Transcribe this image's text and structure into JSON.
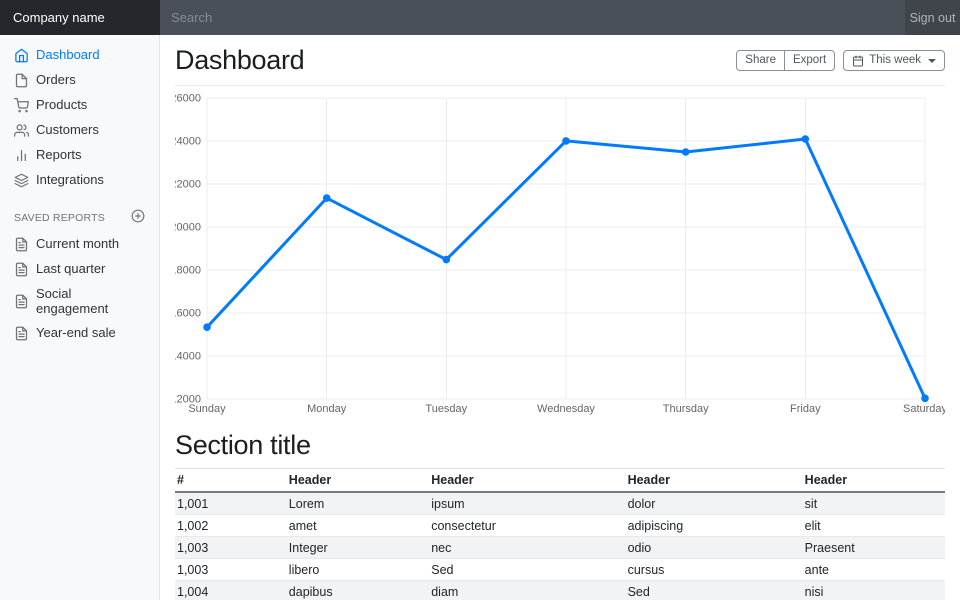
{
  "colors": {
    "accent_blue": "#007bff",
    "navbar_bg": "#3f444b",
    "navbar_brand_bg": "#24272b",
    "sidebar_bg": "#f8f9fa"
  },
  "navbar": {
    "brand": "Company name",
    "search_placeholder": "Search",
    "sign_out": "Sign out"
  },
  "sidebar": {
    "items": [
      {
        "label": "Dashboard",
        "icon": "home-icon",
        "active": true
      },
      {
        "label": "Orders",
        "icon": "file-icon",
        "active": false
      },
      {
        "label": "Products",
        "icon": "shopping-cart-icon",
        "active": false
      },
      {
        "label": "Customers",
        "icon": "users-icon",
        "active": false
      },
      {
        "label": "Reports",
        "icon": "bar-chart-icon",
        "active": false
      },
      {
        "label": "Integrations",
        "icon": "layers-icon",
        "active": false
      }
    ],
    "saved_reports_heading": "Saved reports",
    "saved_reports_add_icon": "plus-circle-icon",
    "saved_reports": [
      {
        "label": "Current month",
        "icon": "file-text-icon"
      },
      {
        "label": "Last quarter",
        "icon": "file-text-icon"
      },
      {
        "label": "Social engagement",
        "icon": "file-text-icon"
      },
      {
        "label": "Year-end sale",
        "icon": "file-text-icon"
      }
    ]
  },
  "header": {
    "title": "Dashboard",
    "actions": [
      {
        "label": "Share"
      },
      {
        "label": "Export"
      }
    ],
    "dropdown": {
      "label": "This week",
      "icon": "calendar-icon"
    }
  },
  "chart_data": {
    "type": "line",
    "x": [
      "Sunday",
      "Monday",
      "Tuesday",
      "Wednesday",
      "Thursday",
      "Friday",
      "Saturday"
    ],
    "series": [
      {
        "name": "This week",
        "values": [
          15339,
          21345,
          18483,
          24003,
          23489,
          24092,
          12034
        ],
        "color": "#007bff"
      }
    ],
    "ylim": [
      12000,
      26000
    ],
    "ytick_step": 2000,
    "grid": true,
    "legend": "none",
    "title": "",
    "xlabel": "",
    "ylabel": ""
  },
  "section": {
    "title": "Section title",
    "table": {
      "headers": [
        "#",
        "Header",
        "Header",
        "Header",
        "Header"
      ],
      "rows": [
        [
          "1,001",
          "Lorem",
          "ipsum",
          "dolor",
          "sit"
        ],
        [
          "1,002",
          "amet",
          "consectetur",
          "adipiscing",
          "elit"
        ],
        [
          "1,003",
          "Integer",
          "nec",
          "odio",
          "Praesent"
        ],
        [
          "1,003",
          "libero",
          "Sed",
          "cursus",
          "ante"
        ],
        [
          "1,004",
          "dapibus",
          "diam",
          "Sed",
          "nisi"
        ]
      ]
    }
  }
}
